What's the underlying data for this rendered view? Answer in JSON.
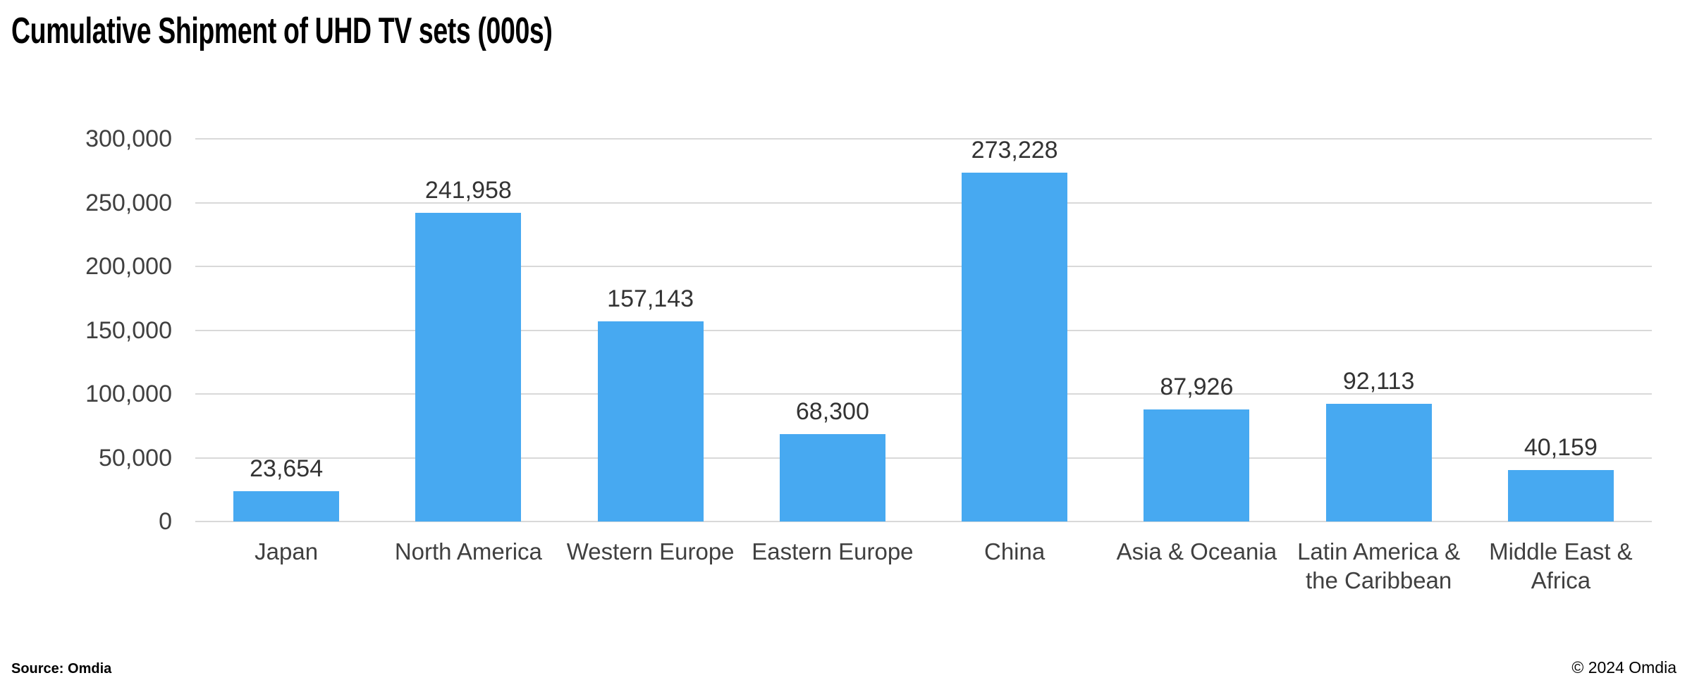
{
  "title": "Cumulative Shipment of UHD TV sets (000s)",
  "footer": {
    "source": "Source: Omdia",
    "copyright": "© 2024 Omdia"
  },
  "chart_data": {
    "type": "bar",
    "title": "Cumulative Shipment of UHD TV sets (000s)",
    "categories": [
      "Japan",
      "North America",
      "Western Europe",
      "Eastern Europe",
      "China",
      "Asia & Oceania",
      "Latin America &\nthe Caribbean",
      "Middle East &\nAfrica"
    ],
    "values": [
      23654,
      241958,
      157143,
      68300,
      273228,
      87926,
      92113,
      40159
    ],
    "value_labels": [
      "23,654",
      "241,958",
      "157,143",
      "68,300",
      "273,228",
      "87,926",
      "92,113",
      "40,159"
    ],
    "xlabel": "",
    "ylabel": "",
    "ylim": [
      0,
      300000
    ],
    "ytick_step": 50000,
    "ytick_labels": [
      "0",
      "50,000",
      "100,000",
      "150,000",
      "200,000",
      "250,000",
      "300,000"
    ],
    "grid": true,
    "legend": false,
    "colors": {
      "bar": "#47A9F1",
      "gridline": "#d9d9d9",
      "axis_text": "#404040",
      "value_text": "#333333",
      "title_text": "#000000"
    }
  }
}
